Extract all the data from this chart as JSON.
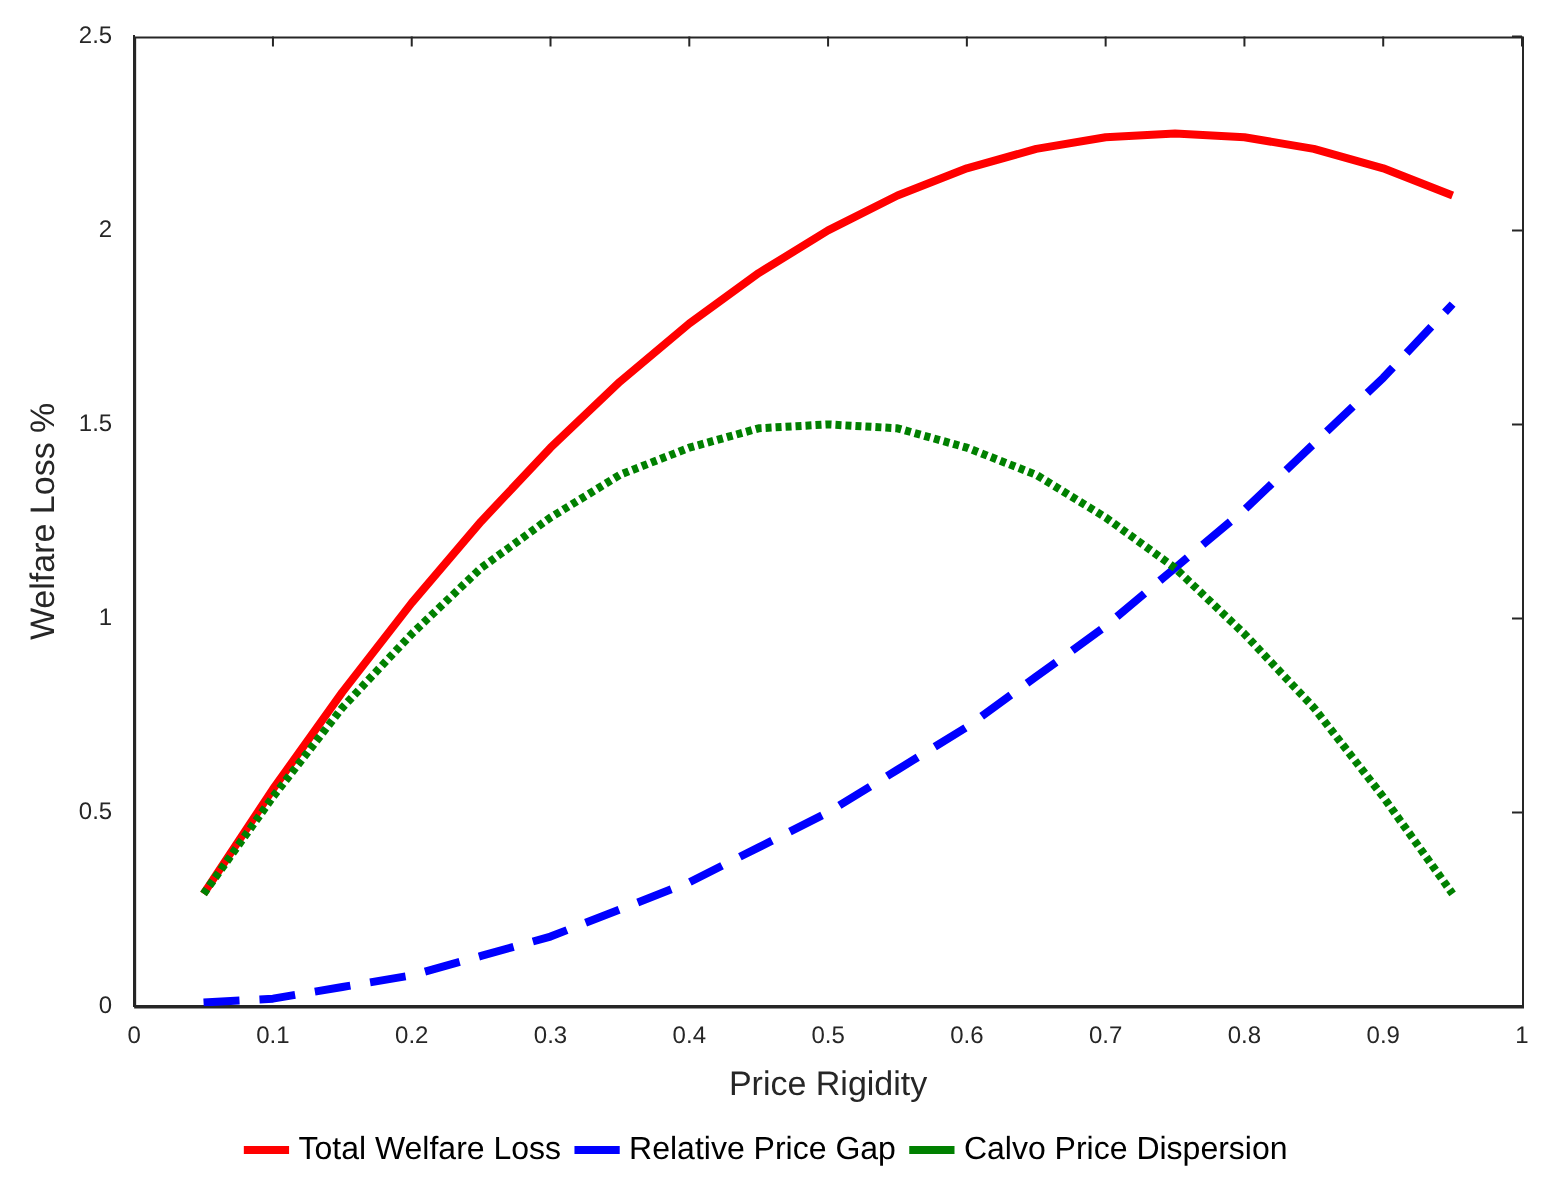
{
  "chart_data": {
    "type": "line",
    "xlabel": "Price Rigidity",
    "ylabel": "Welfare Loss %",
    "x": [
      0.05,
      0.1,
      0.15,
      0.2,
      0.25,
      0.3,
      0.35,
      0.4,
      0.45,
      0.5,
      0.55,
      0.6,
      0.65,
      0.7,
      0.75,
      0.8,
      0.85,
      0.9,
      0.95
    ],
    "series": [
      {
        "name": "Total Welfare Loss",
        "color": "#ff0000",
        "line_style": "solid",
        "values": [
          0.29,
          0.56,
          0.81,
          1.04,
          1.25,
          1.44,
          1.61,
          1.76,
          1.89,
          2.0,
          2.09,
          2.16,
          2.21,
          2.24,
          2.25,
          2.24,
          2.21,
          2.16,
          2.09
        ]
      },
      {
        "name": "Relative Price Gap",
        "color": "#0000ff",
        "line_style": "dashed",
        "values": [
          0.01,
          0.02,
          0.05,
          0.08,
          0.13,
          0.18,
          0.25,
          0.32,
          0.41,
          0.5,
          0.61,
          0.72,
          0.85,
          0.98,
          1.13,
          1.28,
          1.45,
          1.62,
          1.81
        ]
      },
      {
        "name": "Calvo Price Dispersion",
        "color": "#008000",
        "line_style": "dotted",
        "values": [
          0.29,
          0.54,
          0.77,
          0.96,
          1.13,
          1.26,
          1.37,
          1.44,
          1.49,
          1.5,
          1.49,
          1.44,
          1.37,
          1.26,
          1.13,
          0.96,
          0.77,
          0.54,
          0.29
        ]
      }
    ],
    "xlim": [
      0,
      1
    ],
    "xticks": [
      0,
      0.1,
      0.2,
      0.3,
      0.4,
      0.5,
      0.6,
      0.7,
      0.8,
      0.9,
      1
    ],
    "ylim": [
      0,
      2.5
    ],
    "yticks": [
      0,
      0.5,
      1,
      1.5,
      2,
      2.5
    ],
    "grid": false,
    "legend": "bottom",
    "marker": "none"
  }
}
